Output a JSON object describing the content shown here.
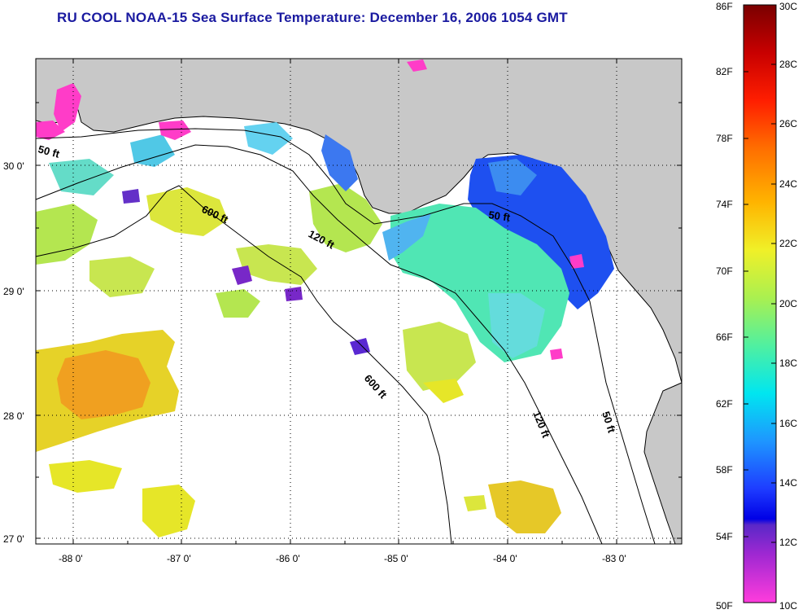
{
  "title": "RU COOL  NOAA-15  Sea Surface Temperature:  December 16, 2006 1054 GMT",
  "map": {
    "lat_labels": [
      "30 0'",
      "29 0'",
      "28 0'",
      "27 0'"
    ],
    "lon_labels": [
      "-88 0'",
      "-87 0'",
      "-86 0'",
      "-85 0'",
      "-84 0'",
      "-83 0'"
    ],
    "contour_labels": [
      "50 ft",
      "600 ft",
      "120 ft",
      "50 ft",
      "600 ft",
      "120 ft",
      "50 ft"
    ]
  },
  "colorbar": {
    "fahrenheit": [
      "86F",
      "82F",
      "78F",
      "74F",
      "70F",
      "66F",
      "62F",
      "58F",
      "54F",
      "50F"
    ],
    "celsius": [
      "30C",
      "28C",
      "26C",
      "24C",
      "22C",
      "20C",
      "18C",
      "16C",
      "14C",
      "12C",
      "10C"
    ]
  },
  "colors": {
    "land": "#c8c8c8",
    "title": "#1a1aa0",
    "warm_orange": "#f0a020",
    "yellow": "#e6e628",
    "yellow_green": "#b4e650",
    "cyan_green": "#50e6b4",
    "light_blue": "#50b4f0",
    "blue": "#1e50f0",
    "purple": "#7828c8",
    "magenta": "#ff3cc8"
  }
}
